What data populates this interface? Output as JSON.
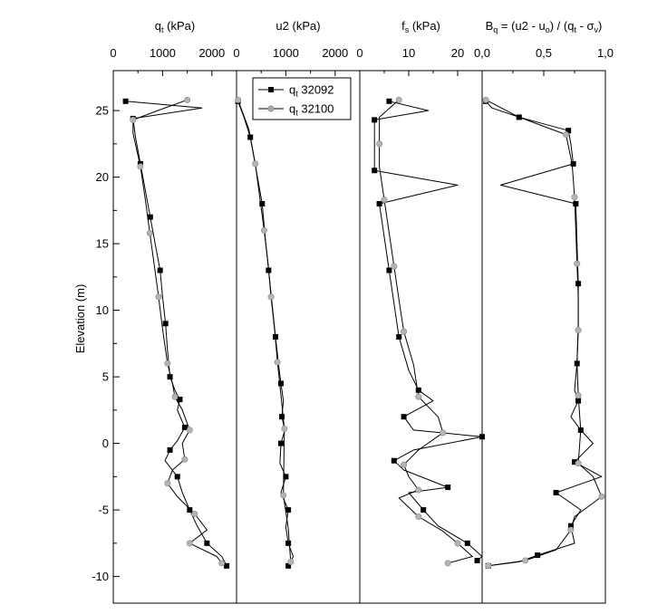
{
  "chart_data": {
    "type": "line",
    "layout": "four vertical depth-profile panels sharing one y axis",
    "ylabel": "Elevation (m)",
    "ylim": [
      -12,
      28
    ],
    "yticks": [
      -10,
      -5,
      0,
      5,
      10,
      15,
      20,
      25
    ],
    "grid": false,
    "legend_placement": "top, in second panel",
    "legend": [
      {
        "prefix": "q",
        "subscript": "t",
        "suffix": " 32092",
        "marker": "square",
        "color": "#000000"
      },
      {
        "prefix": "q",
        "subscript": "t",
        "suffix": " 32100",
        "marker": "circle",
        "color": "#aaaaaa"
      }
    ],
    "panels": [
      {
        "title_parts": [
          [
            "q",
            ""
          ],
          [
            "t",
            "sub"
          ],
          [
            " (kPa)",
            ""
          ]
        ],
        "xlim": [
          0,
          2500
        ],
        "xticks": [
          0,
          1000,
          2000
        ],
        "xtick_labels": [
          "0",
          "1000",
          "2000"
        ],
        "series": [
          {
            "marker": "square",
            "elevation": [
              25.7,
              25.2,
              24.4,
              23.0,
              21.0,
              19.0,
              17.0,
              15.0,
              13.0,
              11.0,
              9.0,
              7.0,
              5.0,
              4.0,
              3.3,
              2.5,
              1.2,
              0.2,
              -0.5,
              -1.3,
              -2.5,
              -3.7,
              -5.0,
              -6.2,
              -7.5,
              -8.5,
              -9.2
            ],
            "value": [
              250,
              1800,
              400,
              450,
              550,
              650,
              750,
              850,
              950,
              1000,
              1060,
              1100,
              1150,
              1250,
              1350,
              1300,
              1450,
              1300,
              1150,
              1050,
              1300,
              1400,
              1550,
              1700,
              1900,
              2200,
              2300
            ]
          },
          {
            "marker": "circle",
            "elevation": [
              25.8,
              25.0,
              24.3,
              23.3,
              20.8,
              18.3,
              15.8,
              13.4,
              11.0,
              8.6,
              6.0,
              4.5,
              3.5,
              2.5,
              1.0,
              0.0,
              -1.2,
              -2.0,
              -3.0,
              -4.0,
              -5.3,
              -6.5,
              -7.5,
              -8.5,
              -9.0
            ],
            "value": [
              1500,
              900,
              400,
              400,
              550,
              650,
              740,
              830,
              920,
              1000,
              1100,
              1200,
              1250,
              1400,
              1550,
              1400,
              1450,
              1200,
              1100,
              1300,
              1650,
              1900,
              1550,
              2100,
              2200
            ]
          }
        ]
      },
      {
        "title_parts": [
          [
            "u2 (kPa)",
            ""
          ]
        ],
        "xlim": [
          0,
          2500
        ],
        "xticks": [
          0,
          1000,
          2000
        ],
        "xtick_labels": [
          "0",
          "1000",
          "2000"
        ],
        "series": [
          {
            "marker": "square",
            "elevation": [
              25.7,
              24.5,
              23.0,
              20.5,
              18.0,
              15.5,
              13.0,
              10.5,
              8.0,
              6.0,
              4.5,
              3.2,
              2.0,
              1.0,
              0.0,
              -1.5,
              -2.5,
              -3.7,
              -5.0,
              -6.3,
              -7.5,
              -8.5,
              -9.2
            ],
            "value": [
              30,
              150,
              280,
              400,
              520,
              580,
              650,
              720,
              790,
              850,
              900,
              950,
              920,
              980,
              900,
              880,
              1000,
              900,
              1050,
              1000,
              1050,
              1150,
              1050
            ]
          },
          {
            "marker": "circle",
            "elevation": [
              25.8,
              23.6,
              21.0,
              18.5,
              16.0,
              13.5,
              11.0,
              8.6,
              6.1,
              3.6,
              1.1,
              -1.4,
              -3.9,
              -6.4,
              -8.9
            ],
            "value": [
              30,
              250,
              380,
              470,
              560,
              640,
              700,
              770,
              830,
              900,
              970,
              960,
              950,
              1050,
              1100
            ]
          }
        ]
      },
      {
        "title_parts": [
          [
            "f",
            ""
          ],
          [
            "s",
            "sub"
          ],
          [
            " (kPa)",
            ""
          ]
        ],
        "xlim": [
          0,
          25
        ],
        "xticks": [
          0,
          10,
          20
        ],
        "xtick_labels": [
          "0",
          "10",
          "20"
        ],
        "series": [
          {
            "marker": "square",
            "elevation": [
              25.7,
              25.0,
              24.3,
              23.0,
              20.5,
              19.4,
              18.0,
              15.5,
              13.0,
              10.5,
              8.0,
              5.5,
              4.0,
              3.2,
              2.0,
              1.0,
              0.5,
              -0.5,
              -1.3,
              -2.0,
              -3.3,
              -3.7,
              -5.0,
              -6.2,
              -7.5,
              -8.5,
              -8.8
            ],
            "value": [
              6,
              14,
              3,
              3,
              3,
              20,
              4,
              5,
              6,
              7,
              8,
              10,
              12,
              15,
              9,
              11,
              25,
              11,
              7,
              9,
              18,
              10,
              13,
              16,
              22,
              25,
              24
            ]
          },
          {
            "marker": "circle",
            "elevation": [
              25.8,
              24.5,
              22.5,
              20.8,
              18.3,
              15.8,
              13.3,
              10.8,
              8.4,
              5.9,
              3.5,
              2.0,
              0.8,
              -0.5,
              -1.6,
              -2.5,
              -3.5,
              -4.1,
              -5.5,
              -6.6,
              -7.5,
              -8.5,
              -9.0
            ],
            "value": [
              8,
              4,
              4,
              4,
              5,
              6,
              7,
              8,
              9,
              11,
              12,
              16,
              17,
              12,
              9,
              10,
              12,
              8,
              12,
              17,
              20,
              23,
              18
            ]
          }
        ]
      },
      {
        "title_parts": [
          [
            "B",
            ""
          ],
          [
            "q",
            "sub"
          ],
          [
            " = (u2 - u",
            ""
          ],
          [
            "o",
            "sub"
          ],
          [
            ") / (q",
            ""
          ],
          [
            "t",
            "sub"
          ],
          [
            " - σ",
            ""
          ],
          [
            "v",
            "sub"
          ],
          [
            ")",
            ""
          ]
        ],
        "xlim": [
          0,
          1
        ],
        "xticks": [
          0,
          0.5,
          1
        ],
        "xtick_labels": [
          "0,0",
          "0,5",
          "1,0"
        ],
        "series": [
          {
            "marker": "square",
            "elevation": [
              25.7,
              25.2,
              24.5,
              24.0,
              23.5,
              22.5,
              21.0,
              19.4,
              18.0,
              15.0,
              12.0,
              9.0,
              6.0,
              4.0,
              3.2,
              2.0,
              1.0,
              0.0,
              -1.4,
              -2.5,
              -3.7,
              -5.0,
              -6.2,
              -7.5,
              -8.4,
              -8.9,
              -9.2
            ],
            "value": [
              0.03,
              0.08,
              0.3,
              0.5,
              0.7,
              0.72,
              0.74,
              0.15,
              0.76,
              0.77,
              0.78,
              0.78,
              0.77,
              0.75,
              0.78,
              0.72,
              0.8,
              0.9,
              0.75,
              0.97,
              0.6,
              0.8,
              0.72,
              0.75,
              0.45,
              0.3,
              0.05
            ]
          },
          {
            "marker": "circle",
            "elevation": [
              25.8,
              24.5,
              23.2,
              21.0,
              18.5,
              16.0,
              13.5,
              11.0,
              8.5,
              6.1,
              3.6,
              1.0,
              -1.5,
              -2.5,
              -4.0,
              -5.5,
              -6.5,
              -8.0,
              -8.8,
              -9.2
            ],
            "value": [
              0.03,
              0.3,
              0.68,
              0.73,
              0.75,
              0.76,
              0.77,
              0.78,
              0.78,
              0.77,
              0.78,
              0.8,
              0.78,
              0.9,
              0.97,
              0.75,
              0.72,
              0.6,
              0.35,
              0.05
            ]
          }
        ]
      }
    ]
  }
}
